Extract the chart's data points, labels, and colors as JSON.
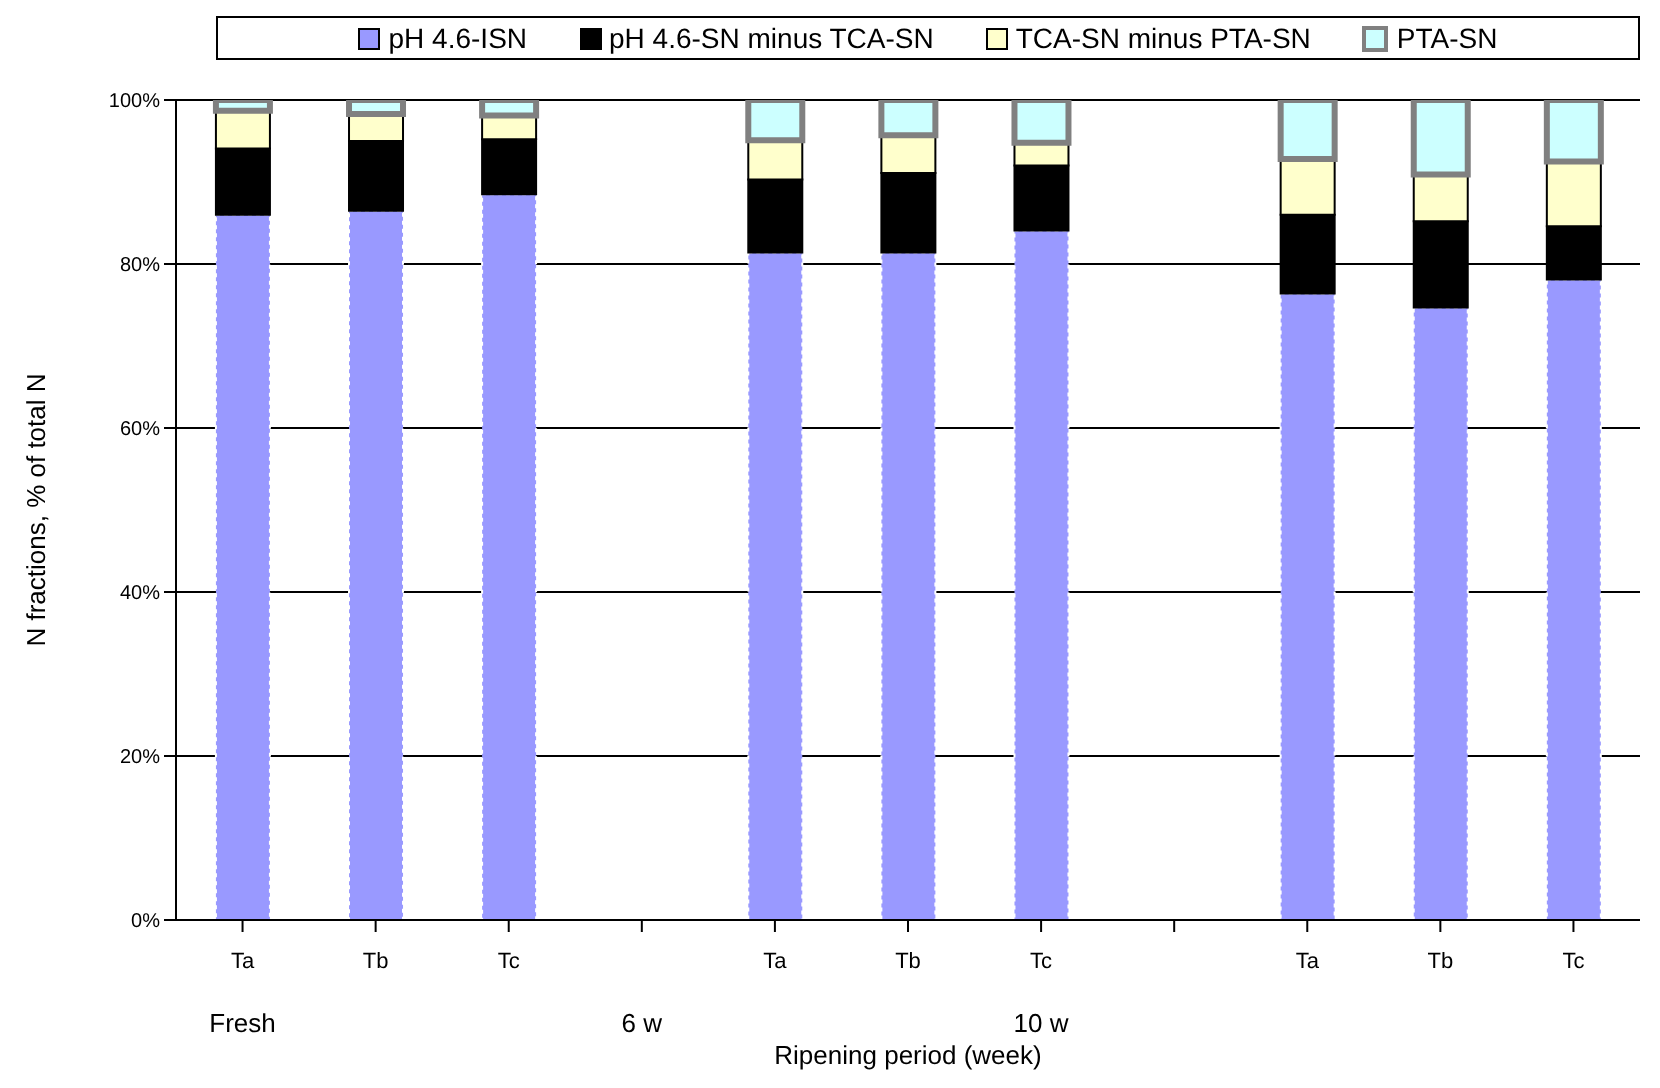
{
  "chart_data": {
    "type": "bar",
    "stacked": true,
    "xlabel": "Ripening period (week)",
    "ylabel": "N fractions, % of total N",
    "categories": [
      "Ta",
      "Tb",
      "Tc",
      null,
      "Ta",
      "Tb",
      "Tc",
      null,
      "Ta",
      "Tb",
      "Tc"
    ],
    "series": [
      {
        "name": "pH 4.6-ISN",
        "color": "#9999ff",
        "values": [
          86,
          86.5,
          88.5,
          null,
          81.4,
          81.4,
          84.1,
          null,
          76.4,
          74.7,
          78.1
        ]
      },
      {
        "name": "pH 4.6-SN minus TCA-SN",
        "color": "#000000",
        "values": [
          8.1,
          8.5,
          6.7,
          null,
          8.9,
          9.7,
          7.9,
          null,
          9.6,
          10.5,
          6.5
        ]
      },
      {
        "name": "TCA-SN minus PTA-SN",
        "color": "#ffffcc",
        "values": [
          4.6,
          3.3,
          2.9,
          null,
          4.8,
          4.6,
          2.8,
          null,
          6.8,
          5.7,
          7.9
        ]
      },
      {
        "name": "PTA-SN",
        "color": "#ccffff",
        "values": [
          1.3,
          1.7,
          1.9,
          null,
          4.9,
          4.3,
          5.2,
          null,
          7.2,
          9.1,
          7.5
        ]
      }
    ],
    "ylim": [
      0,
      100
    ],
    "yticks": [
      {
        "value": 0,
        "label": "0%"
      },
      {
        "value": 20,
        "label": "20%"
      },
      {
        "value": 40,
        "label": "40%"
      },
      {
        "value": 60,
        "label": "60%"
      },
      {
        "value": 80,
        "label": "80%"
      },
      {
        "value": 100,
        "label": "100%"
      }
    ],
    "grid": "y",
    "legend": "top",
    "annotations": [
      "Fresh",
      "6 w",
      "10 w"
    ]
  }
}
